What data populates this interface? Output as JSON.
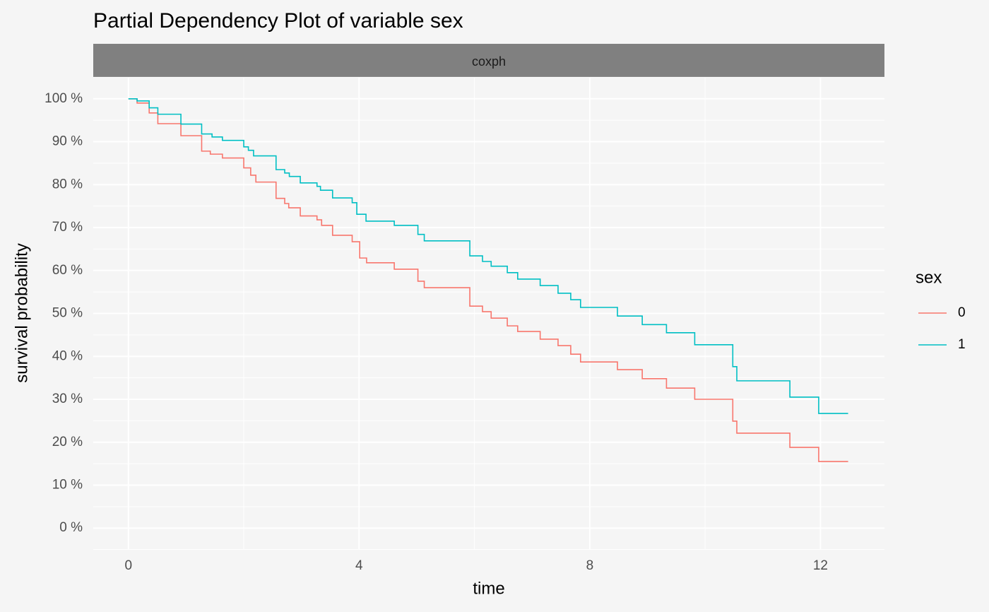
{
  "chart_data": {
    "type": "step",
    "title": "Partial Dependency Plot of variable sex",
    "facet_label": "coxph",
    "x_label": "time",
    "y_label": "survival probability",
    "legend_title": "sex",
    "legend_position": "right",
    "grid": true,
    "xlim": [
      -0.61,
      13.11
    ],
    "ylim": [
      -4.9,
      104.9
    ],
    "xticks": [
      0,
      4,
      8,
      12
    ],
    "yticks": [
      {
        "value": 0,
        "label": "0 %"
      },
      {
        "value": 10,
        "label": "10 %"
      },
      {
        "value": 20,
        "label": "20 %"
      },
      {
        "value": 30,
        "label": "30 %"
      },
      {
        "value": 40,
        "label": "40 %"
      },
      {
        "value": 50,
        "label": "50 %"
      },
      {
        "value": 60,
        "label": "60 %"
      },
      {
        "value": 70,
        "label": "70 %"
      },
      {
        "value": 80,
        "label": "80 %"
      },
      {
        "value": 90,
        "label": "90 %"
      },
      {
        "value": 100,
        "label": "100 %"
      }
    ],
    "series": [
      {
        "name": "0",
        "color": "#f8766d",
        "x": [
          0,
          0.15,
          0.36,
          0.51,
          0.91,
          1.27,
          1.42,
          1.63,
          2.0,
          2.12,
          2.21,
          2.56,
          2.71,
          2.78,
          2.98,
          3.27,
          3.35,
          3.54,
          3.88,
          4.01,
          4.13,
          4.61,
          5.02,
          5.13,
          5.92,
          6.14,
          6.29,
          6.57,
          6.75,
          7.14,
          7.45,
          7.67,
          7.84,
          8.48,
          8.91,
          9.33,
          9.82,
          10.48,
          10.55,
          11.47,
          11.97,
          12.48
        ],
        "values": [
          100,
          99.0,
          96.7,
          94.2,
          91.4,
          87.8,
          87.1,
          86.2,
          83.9,
          82.2,
          80.6,
          76.8,
          75.6,
          74.6,
          72.7,
          71.8,
          70.5,
          68.2,
          66.7,
          62.9,
          61.8,
          60.3,
          57.5,
          56.0,
          51.7,
          50.4,
          48.9,
          47.1,
          45.8,
          44.0,
          42.5,
          40.5,
          38.7,
          36.9,
          34.8,
          32.6,
          30.0,
          24.9,
          22.1,
          18.8,
          15.5,
          15.5
        ]
      },
      {
        "name": "1",
        "color": "#00bfc4",
        "x": [
          0,
          0.15,
          0.36,
          0.51,
          0.91,
          1.27,
          1.45,
          1.63,
          2.0,
          2.08,
          2.17,
          2.56,
          2.71,
          2.79,
          2.98,
          3.27,
          3.33,
          3.54,
          3.88,
          3.96,
          4.12,
          4.61,
          5.02,
          5.13,
          5.92,
          6.14,
          6.29,
          6.57,
          6.75,
          7.14,
          7.45,
          7.67,
          7.84,
          8.48,
          8.91,
          9.33,
          9.82,
          10.48,
          10.55,
          11.47,
          11.97,
          12.48
        ],
        "values": [
          100,
          99.5,
          97.9,
          96.4,
          94.1,
          91.8,
          91.1,
          90.3,
          88.8,
          88.0,
          86.7,
          83.5,
          82.7,
          81.9,
          80.4,
          79.6,
          78.7,
          76.9,
          75.8,
          73.1,
          71.5,
          70.5,
          68.4,
          66.9,
          63.4,
          62.1,
          61.0,
          59.5,
          58.0,
          56.5,
          54.7,
          53.2,
          51.4,
          49.4,
          47.4,
          45.5,
          42.7,
          37.6,
          34.3,
          30.5,
          26.7,
          26.7
        ]
      }
    ]
  }
}
